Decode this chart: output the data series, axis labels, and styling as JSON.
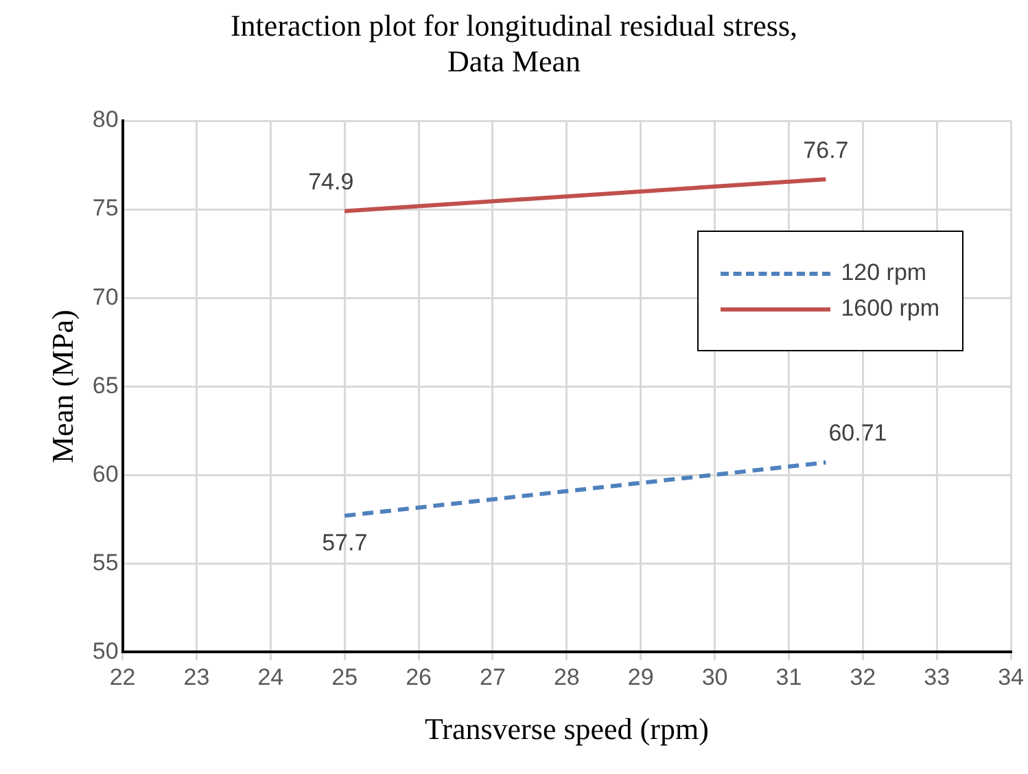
{
  "chart_data": {
    "type": "line",
    "title": "Interaction plot for longitudinal residual stress, Data Mean",
    "xlabel": "Transverse speed (rpm)",
    "ylabel": "Mean (MPa)",
    "xlim": [
      22,
      34
    ],
    "xticks": [
      22,
      23,
      24,
      25,
      26,
      27,
      28,
      29,
      30,
      31,
      32,
      33,
      34
    ],
    "ylim": [
      50,
      80
    ],
    "yticks": [
      50,
      55,
      60,
      65,
      70,
      75,
      80
    ],
    "x": [
      25,
      31.5
    ],
    "series": [
      {
        "name": "120 rpm",
        "color": "#4f81bd",
        "values": [
          57.7,
          60.71
        ],
        "line_style": "dashed"
      },
      {
        "name": "1600 rpm",
        "color": "#c0504d",
        "values": [
          74.9,
          76.7
        ],
        "line_style": "solid"
      }
    ],
    "grid": true,
    "legend": "top right",
    "marker": "none",
    "data_labels": true
  }
}
